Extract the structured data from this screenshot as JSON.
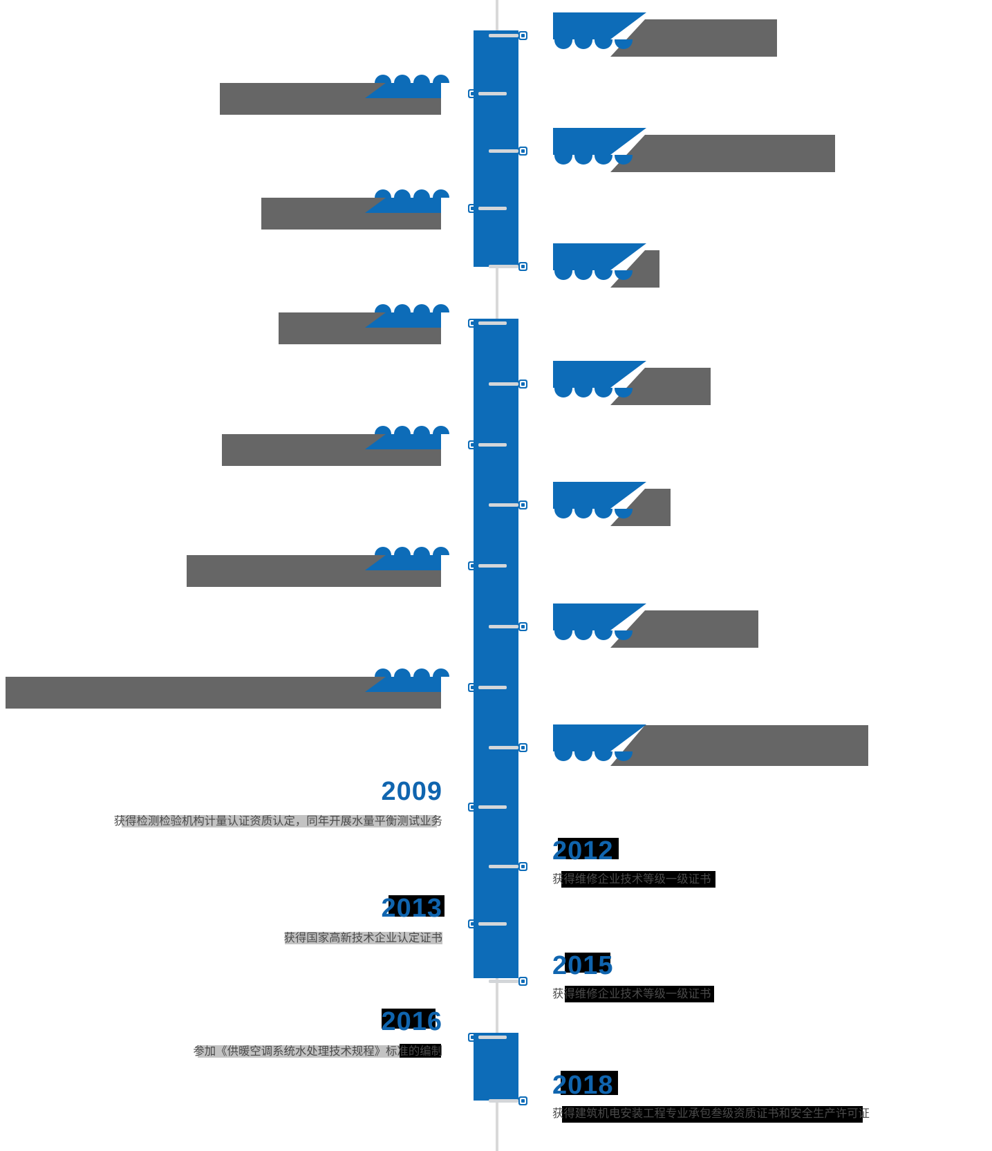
{
  "timeline": {
    "name": "company-history-timeline",
    "colors": {
      "accent_blue": "#0D6CB8",
      "year_blue": "#1065AF",
      "cover_gray": "#666666",
      "desc_gray": "#4A4A4A",
      "axis_line_gray": "#D9D9D9",
      "tick_gray": "#D3D6D9",
      "highlight_black": "#000000",
      "highlight_light_gray": "#C3C3C3"
    },
    "entries": [
      {
        "side": "right",
        "covered": true,
        "year": "",
        "desc": ""
      },
      {
        "side": "left",
        "covered": true,
        "year": "",
        "desc": ""
      },
      {
        "side": "right",
        "covered": true,
        "year": "",
        "desc": ""
      },
      {
        "side": "left",
        "covered": true,
        "year": "",
        "desc": ""
      },
      {
        "side": "right",
        "covered": true,
        "year": "",
        "desc": ""
      },
      {
        "side": "left",
        "covered": true,
        "year": "",
        "desc": ""
      },
      {
        "side": "right",
        "covered": true,
        "year": "",
        "desc": ""
      },
      {
        "side": "left",
        "covered": true,
        "year": "",
        "desc": ""
      },
      {
        "side": "right",
        "covered": true,
        "year": "",
        "desc": ""
      },
      {
        "side": "left",
        "covered": true,
        "year": "",
        "desc": ""
      },
      {
        "side": "right",
        "covered": true,
        "year": "",
        "desc": ""
      },
      {
        "side": "left",
        "covered": true,
        "year": "",
        "desc": ""
      },
      {
        "side": "right",
        "covered": true,
        "year": "",
        "desc": ""
      },
      {
        "side": "left",
        "covered": false,
        "year": "2009",
        "desc": "获得检测检验机构计量认证资质认定，同年开展水量平衡测试业务"
      },
      {
        "side": "right",
        "covered": false,
        "year": "2012",
        "desc": "获得维修企业技术等级一级证书"
      },
      {
        "side": "left",
        "covered": false,
        "year": "2013",
        "desc": "获得国家高新技术企业认定证书"
      },
      {
        "side": "right",
        "covered": false,
        "year": "2015",
        "desc": "获得维修企业技术等级一级证书"
      },
      {
        "side": "left",
        "covered": false,
        "year": "2016",
        "desc": "参加《供暖空调系统水处理技术规程》标准的编制"
      },
      {
        "side": "right",
        "covered": false,
        "year": "2018",
        "desc": "获得建筑机电安装工程专业承包叁级资质证书和安全生产许可证"
      }
    ]
  }
}
